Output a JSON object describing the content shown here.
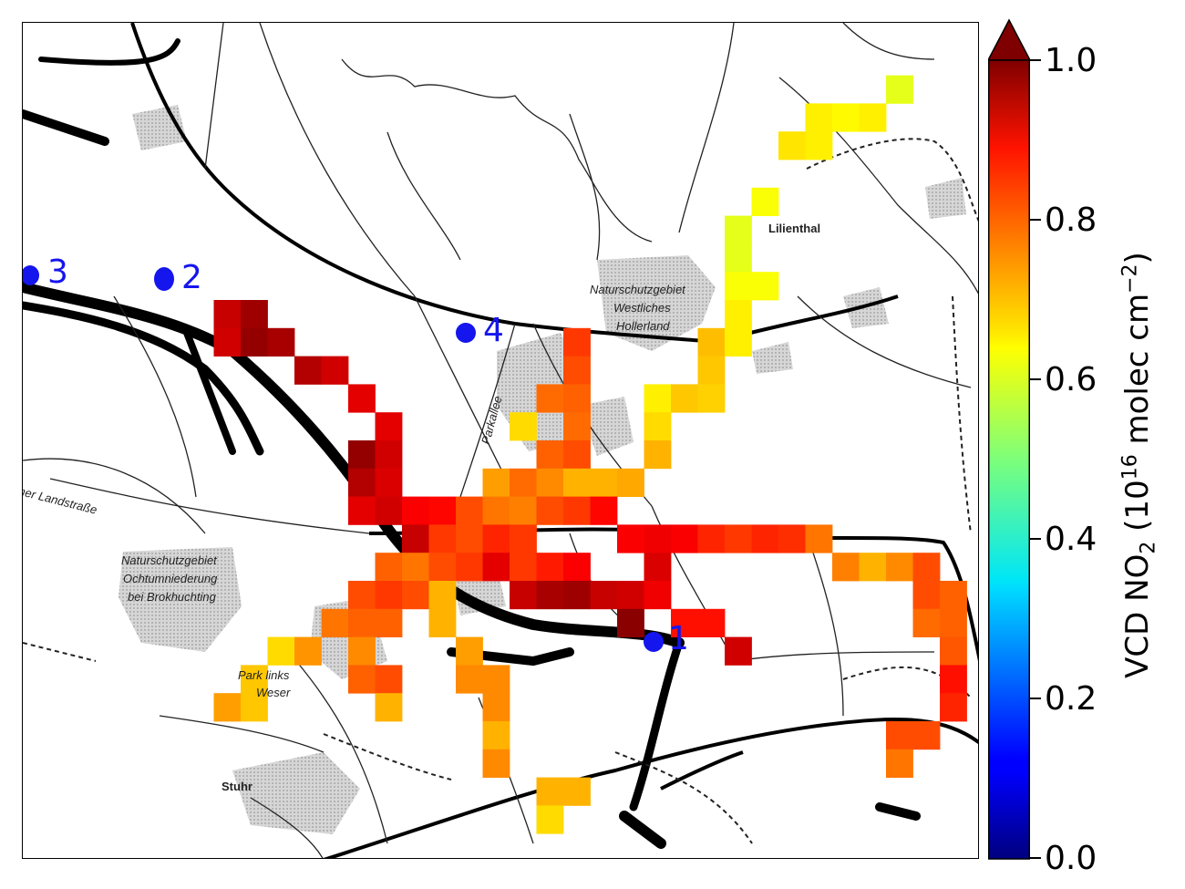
{
  "map": {
    "place_labels": {
      "lilienthal": "Lilienthal",
      "nsg_hollerland_1": "Naturschutzgebiet",
      "nsg_hollerland_2": "Westliches",
      "nsg_hollerland_3": "Hollerland",
      "nsg_ochtum_1": "Naturschutzgebiet",
      "nsg_ochtum_2": "Ochtumniederung",
      "nsg_ochtum_3": "bei Brokhuchting",
      "stuhr": "Stuhr",
      "landstrasse": "mer Landstraße",
      "parkallee": "Parkallee",
      "park_links_1": "Park links",
      "park_links_2": "Weser"
    },
    "stations": [
      {
        "id": "1",
        "label": "1"
      },
      {
        "id": "2",
        "label": "2"
      },
      {
        "id": "3",
        "label": "3"
      },
      {
        "id": "4",
        "label": "4"
      }
    ],
    "heatmap_cells": [
      {
        "c": 32,
        "r": 2,
        "v": 0.6
      },
      {
        "c": 29,
        "r": 3,
        "v": 0.64
      },
      {
        "c": 30,
        "r": 3,
        "v": 0.63
      },
      {
        "c": 31,
        "r": 3,
        "v": 0.64
      },
      {
        "c": 28,
        "r": 4,
        "v": 0.65
      },
      {
        "c": 29,
        "r": 4,
        "v": 0.64
      },
      {
        "c": 27,
        "r": 6,
        "v": 0.62
      },
      {
        "c": 26,
        "r": 7,
        "v": 0.6
      },
      {
        "c": 26,
        "r": 8,
        "v": 0.6
      },
      {
        "c": 26,
        "r": 9,
        "v": 0.62
      },
      {
        "c": 27,
        "r": 9,
        "v": 0.62
      },
      {
        "c": 26,
        "r": 10,
        "v": 0.64
      },
      {
        "c": 7,
        "r": 10,
        "v": 0.93
      },
      {
        "c": 8,
        "r": 10,
        "v": 0.97
      },
      {
        "c": 7,
        "r": 11,
        "v": 0.92
      },
      {
        "c": 8,
        "r": 11,
        "v": 0.98
      },
      {
        "c": 9,
        "r": 11,
        "v": 0.96
      },
      {
        "c": 20,
        "r": 11,
        "v": 0.82
      },
      {
        "c": 25,
        "r": 11,
        "v": 0.69
      },
      {
        "c": 26,
        "r": 11,
        "v": 0.64
      },
      {
        "c": 10,
        "r": 12,
        "v": 0.95
      },
      {
        "c": 11,
        "r": 12,
        "v": 0.92
      },
      {
        "c": 20,
        "r": 12,
        "v": 0.8
      },
      {
        "c": 25,
        "r": 12,
        "v": 0.68
      },
      {
        "c": 12,
        "r": 13,
        "v": 0.9
      },
      {
        "c": 19,
        "r": 13,
        "v": 0.77
      },
      {
        "c": 20,
        "r": 13,
        "v": 0.78
      },
      {
        "c": 23,
        "r": 13,
        "v": 0.64
      },
      {
        "c": 24,
        "r": 13,
        "v": 0.68
      },
      {
        "c": 25,
        "r": 13,
        "v": 0.67
      },
      {
        "c": 13,
        "r": 14,
        "v": 0.9
      },
      {
        "c": 18,
        "r": 14,
        "v": 0.66
      },
      {
        "c": 20,
        "r": 14,
        "v": 0.77
      },
      {
        "c": 23,
        "r": 14,
        "v": 0.66
      },
      {
        "c": 12,
        "r": 15,
        "v": 0.98
      },
      {
        "c": 13,
        "r": 15,
        "v": 0.92
      },
      {
        "c": 19,
        "r": 15,
        "v": 0.78
      },
      {
        "c": 20,
        "r": 15,
        "v": 0.8
      },
      {
        "c": 23,
        "r": 15,
        "v": 0.7
      },
      {
        "c": 12,
        "r": 16,
        "v": 0.95
      },
      {
        "c": 13,
        "r": 16,
        "v": 0.91
      },
      {
        "c": 17,
        "r": 16,
        "v": 0.72
      },
      {
        "c": 18,
        "r": 16,
        "v": 0.77
      },
      {
        "c": 19,
        "r": 16,
        "v": 0.74
      },
      {
        "c": 20,
        "r": 16,
        "v": 0.7
      },
      {
        "c": 21,
        "r": 16,
        "v": 0.7
      },
      {
        "c": 22,
        "r": 16,
        "v": 0.71
      },
      {
        "c": 12,
        "r": 17,
        "v": 0.9
      },
      {
        "c": 13,
        "r": 17,
        "v": 0.92
      },
      {
        "c": 14,
        "r": 17,
        "v": 0.88
      },
      {
        "c": 15,
        "r": 17,
        "v": 0.87
      },
      {
        "c": 16,
        "r": 17,
        "v": 0.8
      },
      {
        "c": 17,
        "r": 17,
        "v": 0.76
      },
      {
        "c": 18,
        "r": 17,
        "v": 0.75
      },
      {
        "c": 19,
        "r": 17,
        "v": 0.8
      },
      {
        "c": 20,
        "r": 17,
        "v": 0.82
      },
      {
        "c": 21,
        "r": 17,
        "v": 0.87
      },
      {
        "c": 14,
        "r": 18,
        "v": 0.93
      },
      {
        "c": 15,
        "r": 18,
        "v": 0.82
      },
      {
        "c": 16,
        "r": 18,
        "v": 0.8
      },
      {
        "c": 17,
        "r": 18,
        "v": 0.84
      },
      {
        "c": 18,
        "r": 18,
        "v": 0.82
      },
      {
        "c": 22,
        "r": 18,
        "v": 0.88
      },
      {
        "c": 23,
        "r": 18,
        "v": 0.89
      },
      {
        "c": 24,
        "r": 18,
        "v": 0.88
      },
      {
        "c": 25,
        "r": 18,
        "v": 0.84
      },
      {
        "c": 26,
        "r": 18,
        "v": 0.82
      },
      {
        "c": 27,
        "r": 18,
        "v": 0.84
      },
      {
        "c": 28,
        "r": 18,
        "v": 0.83
      },
      {
        "c": 29,
        "r": 18,
        "v": 0.76
      },
      {
        "c": 13,
        "r": 19,
        "v": 0.78
      },
      {
        "c": 14,
        "r": 19,
        "v": 0.76
      },
      {
        "c": 15,
        "r": 19,
        "v": 0.8
      },
      {
        "c": 16,
        "r": 19,
        "v": 0.82
      },
      {
        "c": 17,
        "r": 19,
        "v": 0.9
      },
      {
        "c": 18,
        "r": 19,
        "v": 0.82
      },
      {
        "c": 19,
        "r": 19,
        "v": 0.85
      },
      {
        "c": 20,
        "r": 19,
        "v": 0.88
      },
      {
        "c": 23,
        "r": 19,
        "v": 0.91
      },
      {
        "c": 30,
        "r": 19,
        "v": 0.75
      },
      {
        "c": 31,
        "r": 19,
        "v": 0.7
      },
      {
        "c": 32,
        "r": 19,
        "v": 0.74
      },
      {
        "c": 33,
        "r": 19,
        "v": 0.8
      },
      {
        "c": 12,
        "r": 20,
        "v": 0.8
      },
      {
        "c": 13,
        "r": 20,
        "v": 0.82
      },
      {
        "c": 14,
        "r": 20,
        "v": 0.8
      },
      {
        "c": 15,
        "r": 20,
        "v": 0.7
      },
      {
        "c": 18,
        "r": 20,
        "v": 0.93
      },
      {
        "c": 19,
        "r": 20,
        "v": 0.96
      },
      {
        "c": 20,
        "r": 20,
        "v": 0.97
      },
      {
        "c": 21,
        "r": 20,
        "v": 0.93
      },
      {
        "c": 22,
        "r": 20,
        "v": 0.92
      },
      {
        "c": 23,
        "r": 20,
        "v": 0.89
      },
      {
        "c": 33,
        "r": 20,
        "v": 0.8
      },
      {
        "c": 34,
        "r": 20,
        "v": 0.78
      },
      {
        "c": 11,
        "r": 21,
        "v": 0.76
      },
      {
        "c": 12,
        "r": 21,
        "v": 0.78
      },
      {
        "c": 13,
        "r": 21,
        "v": 0.78
      },
      {
        "c": 15,
        "r": 21,
        "v": 0.7
      },
      {
        "c": 22,
        "r": 21,
        "v": 0.99
      },
      {
        "c": 24,
        "r": 21,
        "v": 0.86
      },
      {
        "c": 25,
        "r": 21,
        "v": 0.86
      },
      {
        "c": 33,
        "r": 21,
        "v": 0.77
      },
      {
        "c": 34,
        "r": 21,
        "v": 0.78
      },
      {
        "c": 9,
        "r": 22,
        "v": 0.66
      },
      {
        "c": 10,
        "r": 22,
        "v": 0.73
      },
      {
        "c": 12,
        "r": 22,
        "v": 0.74
      },
      {
        "c": 16,
        "r": 22,
        "v": 0.72
      },
      {
        "c": 26,
        "r": 22,
        "v": 0.92
      },
      {
        "c": 34,
        "r": 22,
        "v": 0.79
      },
      {
        "c": 8,
        "r": 23,
        "v": 0.68
      },
      {
        "c": 12,
        "r": 23,
        "v": 0.78
      },
      {
        "c": 13,
        "r": 23,
        "v": 0.8
      },
      {
        "c": 16,
        "r": 23,
        "v": 0.74
      },
      {
        "c": 17,
        "r": 23,
        "v": 0.74
      },
      {
        "c": 34,
        "r": 23,
        "v": 0.86
      },
      {
        "c": 7,
        "r": 24,
        "v": 0.72
      },
      {
        "c": 8,
        "r": 24,
        "v": 0.68
      },
      {
        "c": 13,
        "r": 24,
        "v": 0.7
      },
      {
        "c": 17,
        "r": 24,
        "v": 0.74
      },
      {
        "c": 34,
        "r": 24,
        "v": 0.84
      },
      {
        "c": 17,
        "r": 25,
        "v": 0.7
      },
      {
        "c": 32,
        "r": 25,
        "v": 0.8
      },
      {
        "c": 33,
        "r": 25,
        "v": 0.8
      },
      {
        "c": 17,
        "r": 26,
        "v": 0.74
      },
      {
        "c": 32,
        "r": 26,
        "v": 0.76
      },
      {
        "c": 19,
        "r": 27,
        "v": 0.7
      },
      {
        "c": 20,
        "r": 27,
        "v": 0.7
      },
      {
        "c": 19,
        "r": 28,
        "v": 0.66
      }
    ]
  },
  "colorbar": {
    "title_prefix": "VCD NO",
    "title_sub": "2",
    "title_mid": " (10",
    "title_sup1": "16",
    "title_units": " molec cm",
    "title_sup2": "−2",
    "title_end": ")",
    "ticks": [
      {
        "value": 0.0,
        "label": "0.0"
      },
      {
        "value": 0.2,
        "label": "0.2"
      },
      {
        "value": 0.4,
        "label": "0.4"
      },
      {
        "value": 0.6,
        "label": "0.6"
      },
      {
        "value": 0.8,
        "label": "0.8"
      },
      {
        "value": 1.0,
        "label": "1.0"
      }
    ],
    "range": [
      0.0,
      1.0
    ],
    "colormap": "jet",
    "extend": "max",
    "extend_color": "#7f0000"
  }
}
